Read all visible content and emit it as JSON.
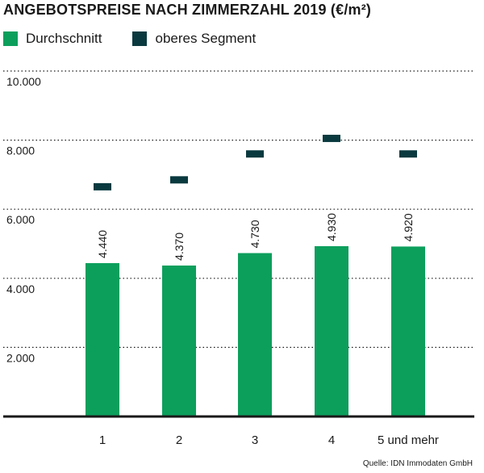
{
  "chart_data": {
    "type": "bar",
    "title": "ANGEBOTSPREISE NACH ZIMMERZAHL 2019 (€/m²)",
    "categories": [
      "1",
      "2",
      "3",
      "4",
      "5 und mehr"
    ],
    "series": [
      {
        "name": "Durchschnitt",
        "values": [
          4440,
          4370,
          4730,
          4930,
          4920
        ],
        "color": "#0c9f5c",
        "data_labels": [
          "4.440",
          "4.370",
          "4.730",
          "4.930",
          "4.920"
        ]
      },
      {
        "name": "oberes Segment",
        "values": [
          6650,
          6850,
          7600,
          8050,
          7600
        ],
        "color": "#0a3a3f"
      }
    ],
    "ylim": [
      0,
      10000
    ],
    "yticks": [
      2000,
      4000,
      6000,
      8000,
      10000
    ],
    "ytick_labels": [
      "2.000",
      "4.000",
      "6.000",
      "8.000",
      "10.000"
    ],
    "grid": true,
    "legend_position": "top-left"
  },
  "source": "Quelle: IDN Immodaten GmbH"
}
